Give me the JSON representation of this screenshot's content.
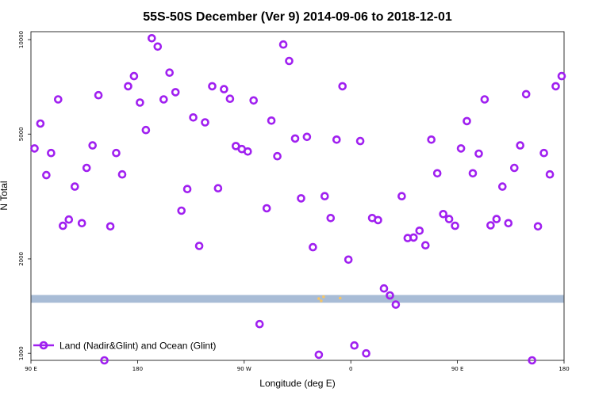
{
  "chart_data": {
    "type": "scatter",
    "title": "55S-50S December (Ver 9)   2014-09-06 to 2018-12-01",
    "xlabel": "Longitude (deg E)",
    "ylabel": "N Total",
    "x_ticks": [
      {
        "value": 90,
        "label": "90 E"
      },
      {
        "value": 180,
        "label": "180"
      },
      {
        "value": 270,
        "label": "90 W"
      },
      {
        "value": 360,
        "label": "0"
      },
      {
        "value": 450,
        "label": "90 E"
      },
      {
        "value": 540,
        "label": "180"
      }
    ],
    "y_ticks": [
      {
        "value": 1000,
        "label": "1000"
      },
      {
        "value": 2000,
        "label": "2000"
      },
      {
        "value": 5000,
        "label": "5000"
      },
      {
        "value": 10000,
        "label": "10000"
      }
    ],
    "xlim": [
      90,
      540
    ],
    "ylim": [
      950,
      10600
    ],
    "y_scale": "log",
    "grid": false,
    "legend_position": "bottom-left",
    "colors": {
      "series": "#a020f0",
      "band": "#a8bcd6",
      "band_speck": "#f2c46a"
    },
    "band": {
      "ymin": 1450,
      "ymax": 1535
    },
    "series": [
      {
        "name": "Land (Nadir&Glint) and Ocean (Glint)",
        "points": [
          [
            93,
            4500
          ],
          [
            98,
            5400
          ],
          [
            103,
            3700
          ],
          [
            107,
            4350
          ],
          [
            113,
            6450
          ],
          [
            117,
            2550
          ],
          [
            122,
            2670
          ],
          [
            127,
            3400
          ],
          [
            133,
            2600
          ],
          [
            137,
            3900
          ],
          [
            142,
            4600
          ],
          [
            147,
            6650
          ],
          [
            152,
            950
          ],
          [
            157,
            2540
          ],
          [
            162,
            4350
          ],
          [
            167,
            3720
          ],
          [
            172,
            7100
          ],
          [
            177,
            7650
          ],
          [
            182,
            6300
          ],
          [
            187,
            5150
          ],
          [
            192,
            10100
          ],
          [
            197,
            9500
          ],
          [
            202,
            6450
          ],
          [
            207,
            7850
          ],
          [
            212,
            6800
          ],
          [
            217,
            2850
          ],
          [
            222,
            3340
          ],
          [
            227,
            5650
          ],
          [
            232,
            2200
          ],
          [
            237,
            5450
          ],
          [
            243,
            7100
          ],
          [
            248,
            3360
          ],
          [
            253,
            6950
          ],
          [
            258,
            6480
          ],
          [
            263,
            4580
          ],
          [
            268,
            4480
          ],
          [
            273,
            4400
          ],
          [
            278,
            6400
          ],
          [
            283,
            1240
          ],
          [
            289,
            2900
          ],
          [
            293,
            5520
          ],
          [
            298,
            4250
          ],
          [
            303,
            9650
          ],
          [
            308,
            8550
          ],
          [
            313,
            4840
          ],
          [
            318,
            3120
          ],
          [
            323,
            4900
          ],
          [
            328,
            2180
          ],
          [
            333,
            990
          ],
          [
            338,
            3170
          ],
          [
            343,
            2700
          ],
          [
            348,
            4800
          ],
          [
            353,
            7100
          ],
          [
            358,
            1990
          ],
          [
            363,
            1060
          ],
          [
            368,
            4750
          ],
          [
            373,
            1000
          ],
          [
            378,
            2700
          ],
          [
            383,
            2660
          ],
          [
            388,
            1610
          ],
          [
            393,
            1530
          ],
          [
            398,
            1430
          ],
          [
            403,
            3170
          ],
          [
            408,
            2330
          ],
          [
            413,
            2340
          ],
          [
            418,
            2460
          ],
          [
            423,
            2210
          ],
          [
            428,
            4800
          ],
          [
            433,
            3750
          ],
          [
            438,
            2780
          ],
          [
            443,
            2680
          ],
          [
            448,
            2550
          ],
          [
            453,
            4500
          ],
          [
            458,
            5500
          ],
          [
            463,
            3750
          ],
          [
            468,
            4330
          ],
          [
            473,
            6450
          ],
          [
            478,
            2560
          ],
          [
            483,
            2680
          ],
          [
            488,
            3400
          ],
          [
            493,
            2600
          ],
          [
            498,
            3900
          ],
          [
            503,
            4600
          ],
          [
            508,
            6700
          ],
          [
            513,
            950
          ],
          [
            518,
            2540
          ],
          [
            523,
            4350
          ],
          [
            528,
            3720
          ],
          [
            533,
            7100
          ],
          [
            538,
            7650
          ]
        ]
      }
    ]
  }
}
